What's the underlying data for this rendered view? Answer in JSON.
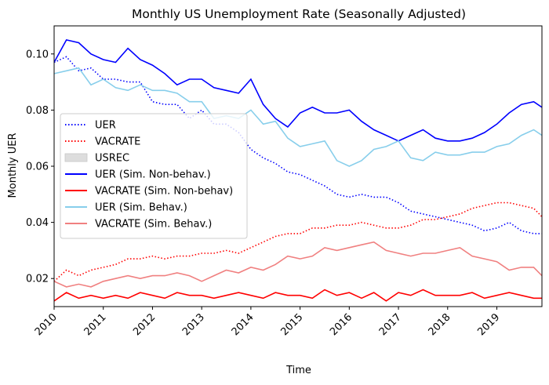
{
  "chart_data": {
    "type": "line",
    "title": "Monthly US Unemployment Rate (Seasonally Adjusted)",
    "xlabel": "Time",
    "ylabel": "Monthly UER",
    "xlim": [
      2010.0,
      2019.917
    ],
    "ylim": [
      0.01,
      0.11
    ],
    "xticks": [
      "2010",
      "2011",
      "2012",
      "2013",
      "2014",
      "2015",
      "2016",
      "2017",
      "2018",
      "2019"
    ],
    "yticks": [
      "0.02",
      "0.04",
      "0.06",
      "0.08",
      "0.10"
    ],
    "grid": false,
    "legend_position": "center-left",
    "series": [
      {
        "name": "UER",
        "color": "#0000ff",
        "style": "dotted",
        "x": [
          2010.0,
          2010.25,
          2010.5,
          2010.75,
          2011.0,
          2011.25,
          2011.5,
          2011.75,
          2012.0,
          2012.25,
          2012.5,
          2012.75,
          2013.0,
          2013.25,
          2013.5,
          2013.75,
          2014.0,
          2014.25,
          2014.5,
          2014.75,
          2015.0,
          2015.25,
          2015.5,
          2015.75,
          2016.0,
          2016.25,
          2016.5,
          2016.75,
          2017.0,
          2017.25,
          2017.5,
          2017.75,
          2018.0,
          2018.25,
          2018.5,
          2018.75,
          2019.0,
          2019.25,
          2019.5,
          2019.75,
          2019.917
        ],
        "values": [
          0.097,
          0.099,
          0.094,
          0.095,
          0.091,
          0.091,
          0.09,
          0.09,
          0.083,
          0.082,
          0.082,
          0.077,
          0.08,
          0.075,
          0.075,
          0.072,
          0.066,
          0.063,
          0.061,
          0.058,
          0.057,
          0.055,
          0.053,
          0.05,
          0.049,
          0.05,
          0.049,
          0.049,
          0.047,
          0.044,
          0.043,
          0.042,
          0.041,
          0.04,
          0.039,
          0.037,
          0.038,
          0.04,
          0.037,
          0.036,
          0.036
        ]
      },
      {
        "name": "VACRATE",
        "color": "#ff0000",
        "style": "dotted",
        "x": [
          2010.0,
          2010.25,
          2010.5,
          2010.75,
          2011.0,
          2011.25,
          2011.5,
          2011.75,
          2012.0,
          2012.25,
          2012.5,
          2012.75,
          2013.0,
          2013.25,
          2013.5,
          2013.75,
          2014.0,
          2014.25,
          2014.5,
          2014.75,
          2015.0,
          2015.25,
          2015.5,
          2015.75,
          2016.0,
          2016.25,
          2016.5,
          2016.75,
          2017.0,
          2017.25,
          2017.5,
          2017.75,
          2018.0,
          2018.25,
          2018.5,
          2018.75,
          2019.0,
          2019.25,
          2019.5,
          2019.75,
          2019.917
        ],
        "values": [
          0.019,
          0.023,
          0.021,
          0.023,
          0.024,
          0.025,
          0.027,
          0.027,
          0.028,
          0.027,
          0.028,
          0.028,
          0.029,
          0.029,
          0.03,
          0.029,
          0.031,
          0.033,
          0.035,
          0.036,
          0.036,
          0.038,
          0.038,
          0.039,
          0.039,
          0.04,
          0.039,
          0.038,
          0.038,
          0.039,
          0.041,
          0.041,
          0.042,
          0.043,
          0.045,
          0.046,
          0.047,
          0.047,
          0.046,
          0.045,
          0.042
        ]
      },
      {
        "name": "USREC",
        "color": "#dddddd",
        "style": "area",
        "x": [],
        "values": []
      },
      {
        "name": "UER (Sim. Non-behav.)",
        "color": "#0000ff",
        "style": "solid",
        "x": [
          2010.0,
          2010.25,
          2010.5,
          2010.75,
          2011.0,
          2011.25,
          2011.5,
          2011.75,
          2012.0,
          2012.25,
          2012.5,
          2012.75,
          2013.0,
          2013.25,
          2013.5,
          2013.75,
          2014.0,
          2014.25,
          2014.5,
          2014.75,
          2015.0,
          2015.25,
          2015.5,
          2015.75,
          2016.0,
          2016.25,
          2016.5,
          2016.75,
          2017.0,
          2017.25,
          2017.5,
          2017.75,
          2018.0,
          2018.25,
          2018.5,
          2018.75,
          2019.0,
          2019.25,
          2019.5,
          2019.75,
          2019.917
        ],
        "values": [
          0.097,
          0.105,
          0.104,
          0.1,
          0.098,
          0.097,
          0.102,
          0.098,
          0.096,
          0.093,
          0.089,
          0.091,
          0.091,
          0.088,
          0.087,
          0.086,
          0.091,
          0.082,
          0.077,
          0.074,
          0.079,
          0.081,
          0.079,
          0.079,
          0.08,
          0.076,
          0.073,
          0.071,
          0.069,
          0.071,
          0.073,
          0.07,
          0.069,
          0.069,
          0.07,
          0.072,
          0.075,
          0.079,
          0.082,
          0.083,
          0.081
        ]
      },
      {
        "name": "VACRATE (Sim. Non-behav)",
        "color": "#ff0000",
        "style": "solid",
        "x": [
          2010.0,
          2010.25,
          2010.5,
          2010.75,
          2011.0,
          2011.25,
          2011.5,
          2011.75,
          2012.0,
          2012.25,
          2012.5,
          2012.75,
          2013.0,
          2013.25,
          2013.5,
          2013.75,
          2014.0,
          2014.25,
          2014.5,
          2014.75,
          2015.0,
          2015.25,
          2015.5,
          2015.75,
          2016.0,
          2016.25,
          2016.5,
          2016.75,
          2017.0,
          2017.25,
          2017.5,
          2017.75,
          2018.0,
          2018.25,
          2018.5,
          2018.75,
          2019.0,
          2019.25,
          2019.5,
          2019.75,
          2019.917
        ],
        "values": [
          0.012,
          0.015,
          0.013,
          0.014,
          0.013,
          0.014,
          0.013,
          0.015,
          0.014,
          0.013,
          0.015,
          0.014,
          0.014,
          0.013,
          0.014,
          0.015,
          0.014,
          0.013,
          0.015,
          0.014,
          0.014,
          0.013,
          0.016,
          0.014,
          0.015,
          0.013,
          0.015,
          0.012,
          0.015,
          0.014,
          0.016,
          0.014,
          0.014,
          0.014,
          0.015,
          0.013,
          0.014,
          0.015,
          0.014,
          0.013,
          0.013
        ]
      },
      {
        "name": "UER (Sim. Behav.)",
        "color": "#87ceeb",
        "style": "solid",
        "x": [
          2010.0,
          2010.25,
          2010.5,
          2010.75,
          2011.0,
          2011.25,
          2011.5,
          2011.75,
          2012.0,
          2012.25,
          2012.5,
          2012.75,
          2013.0,
          2013.25,
          2013.5,
          2013.75,
          2014.0,
          2014.25,
          2014.5,
          2014.75,
          2015.0,
          2015.25,
          2015.5,
          2015.75,
          2016.0,
          2016.25,
          2016.5,
          2016.75,
          2017.0,
          2017.25,
          2017.5,
          2017.75,
          2018.0,
          2018.25,
          2018.5,
          2018.75,
          2019.0,
          2019.25,
          2019.5,
          2019.75,
          2019.917
        ],
        "values": [
          0.093,
          0.094,
          0.095,
          0.089,
          0.091,
          0.088,
          0.087,
          0.089,
          0.087,
          0.087,
          0.086,
          0.083,
          0.083,
          0.077,
          0.078,
          0.077,
          0.08,
          0.075,
          0.076,
          0.07,
          0.067,
          0.068,
          0.069,
          0.062,
          0.06,
          0.062,
          0.066,
          0.067,
          0.069,
          0.063,
          0.062,
          0.065,
          0.064,
          0.064,
          0.065,
          0.065,
          0.067,
          0.068,
          0.071,
          0.073,
          0.071
        ]
      },
      {
        "name": "VACRATE (Sim. Behav.)",
        "color": "#f08080",
        "style": "solid",
        "x": [
          2010.0,
          2010.25,
          2010.5,
          2010.75,
          2011.0,
          2011.25,
          2011.5,
          2011.75,
          2012.0,
          2012.25,
          2012.5,
          2012.75,
          2013.0,
          2013.25,
          2013.5,
          2013.75,
          2014.0,
          2014.25,
          2014.5,
          2014.75,
          2015.0,
          2015.25,
          2015.5,
          2015.75,
          2016.0,
          2016.25,
          2016.5,
          2016.75,
          2017.0,
          2017.25,
          2017.5,
          2017.75,
          2018.0,
          2018.25,
          2018.5,
          2018.75,
          2019.0,
          2019.25,
          2019.5,
          2019.75,
          2019.917
        ],
        "values": [
          0.019,
          0.017,
          0.018,
          0.017,
          0.019,
          0.02,
          0.021,
          0.02,
          0.021,
          0.021,
          0.022,
          0.021,
          0.019,
          0.021,
          0.023,
          0.022,
          0.024,
          0.023,
          0.025,
          0.028,
          0.027,
          0.028,
          0.031,
          0.03,
          0.031,
          0.032,
          0.033,
          0.03,
          0.029,
          0.028,
          0.029,
          0.029,
          0.03,
          0.031,
          0.028,
          0.027,
          0.026,
          0.023,
          0.024,
          0.024,
          0.021
        ]
      }
    ]
  }
}
